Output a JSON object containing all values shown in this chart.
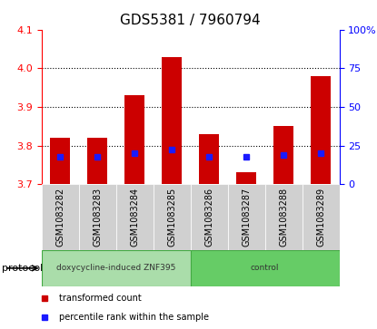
{
  "title": "GDS5381 / 7960794",
  "samples": [
    "GSM1083282",
    "GSM1083283",
    "GSM1083284",
    "GSM1083285",
    "GSM1083286",
    "GSM1083287",
    "GSM1083288",
    "GSM1083289"
  ],
  "bar_tops": [
    3.82,
    3.82,
    3.93,
    4.03,
    3.83,
    3.73,
    3.85,
    3.98
  ],
  "bar_base": 3.7,
  "blue_values": [
    3.77,
    3.77,
    3.78,
    3.79,
    3.77,
    3.77,
    3.775,
    3.78
  ],
  "ylim_left": [
    3.7,
    4.1
  ],
  "ylim_right": [
    0,
    100
  ],
  "yticks_left": [
    3.7,
    3.8,
    3.9,
    4.0,
    4.1
  ],
  "yticks_right": [
    0,
    25,
    50,
    75,
    100
  ],
  "ytick_labels_right": [
    "0",
    "25",
    "50",
    "75",
    "100%"
  ],
  "bar_color": "#cc0000",
  "blue_color": "#1a1aff",
  "bg_color": "#ffffff",
  "protocol_groups": [
    {
      "label": "doxycycline-induced ZNF395",
      "samples": [
        0,
        1,
        2,
        3
      ],
      "color": "#aaddaa"
    },
    {
      "label": "control",
      "samples": [
        4,
        5,
        6,
        7
      ],
      "color": "#66cc66"
    }
  ],
  "protocol_label": "protocol",
  "legend_items": [
    {
      "label": "transformed count",
      "color": "#cc0000"
    },
    {
      "label": "percentile rank within the sample",
      "color": "#1a1aff"
    }
  ],
  "bar_width": 0.55,
  "title_fontsize": 11,
  "tick_fontsize": 8,
  "sample_fontsize": 7,
  "col_bg_odd": "#d4d4d4",
  "col_bg_even": "#c8c8c8",
  "n_samples": 8
}
